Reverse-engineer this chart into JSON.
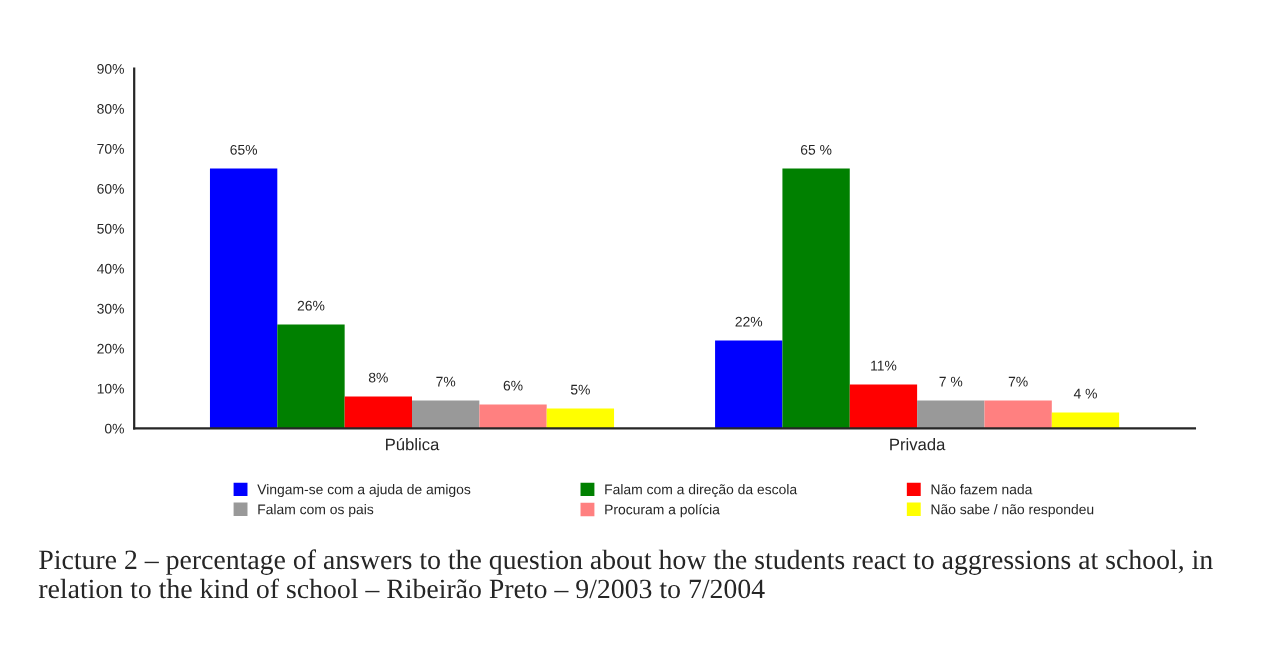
{
  "chart_data": {
    "type": "bar",
    "categories": [
      "Pública",
      "Privada"
    ],
    "series": [
      {
        "name": "Vingam-se com a ajuda de amigos",
        "color": "#0000ff",
        "values": [
          65,
          22
        ]
      },
      {
        "name": "Falam com a direção da escola",
        "color": "#008000",
        "values": [
          26,
          65
        ]
      },
      {
        "name": "Não fazem nada",
        "color": "#ff0000",
        "values": [
          8,
          11
        ]
      },
      {
        "name": "Falam com os pais",
        "color": "#999999",
        "values": [
          7,
          7
        ]
      },
      {
        "name": "Procuram a polícia",
        "color": "#ff8080",
        "values": [
          6,
          7
        ]
      },
      {
        "name": "Não sabe / não respondeu",
        "color": "#ffff00",
        "values": [
          5,
          4
        ]
      }
    ],
    "value_labels": [
      [
        "65%",
        "22%"
      ],
      [
        "26%",
        "65 %"
      ],
      [
        "8%",
        "11%"
      ],
      [
        "7%",
        "7 %"
      ],
      [
        "6%",
        "7%"
      ],
      [
        "5%",
        "4 %"
      ]
    ],
    "ylim": [
      0,
      90
    ],
    "yticks": [
      {
        "value": 0,
        "label": "0%"
      },
      {
        "value": 10,
        "label": "10%"
      },
      {
        "value": 20,
        "label": "20%"
      },
      {
        "value": 30,
        "label": "30%"
      },
      {
        "value": 40,
        "label": "40%"
      },
      {
        "value": 50,
        "label": "50%"
      },
      {
        "value": 60,
        "label": "60%"
      },
      {
        "value": 70,
        "label": "70%"
      },
      {
        "value": 80,
        "label": "80%"
      },
      {
        "value": 90,
        "label": "90%"
      }
    ],
    "grid": false,
    "legend": "bottom",
    "annotations": [
      "Picture 2 – percentage of answers to the question about how the students react to aggressions at school, in relation to the kind of school – Ribeirão Preto – 9/2003 to 7/2004"
    ]
  }
}
